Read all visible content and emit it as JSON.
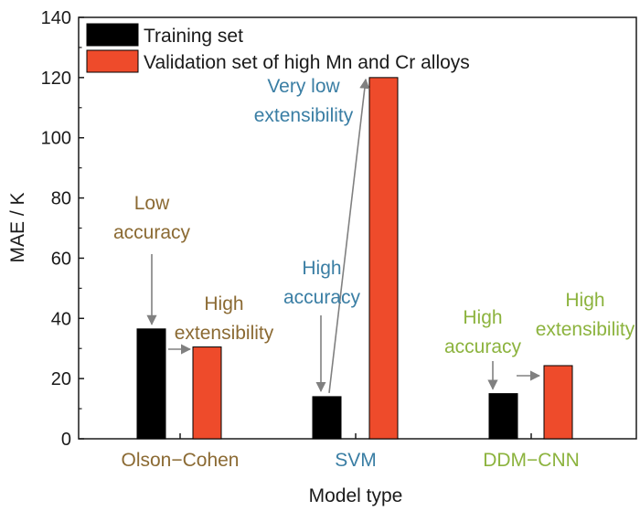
{
  "chart_data": {
    "type": "bar",
    "categories": [
      "Olson−Cohen",
      "SVM",
      "DDM−CNN"
    ],
    "series": [
      {
        "name": "Training set",
        "values": [
          36.5,
          14,
          15
        ],
        "color": "#000000"
      },
      {
        "name": "Validation set of high Mn and Cr alloys",
        "values": [
          30.5,
          120,
          24.3
        ],
        "color": "#ee4b2b"
      }
    ],
    "xlabel": "Model type",
    "ylabel": "MAE / K",
    "ylim": [
      0,
      140
    ],
    "yticks": [
      0,
      20,
      40,
      60,
      80,
      100,
      120,
      140
    ],
    "grid": false,
    "legend_position": "top-left",
    "category_colors": [
      "#8b6a33",
      "#3a7ea4",
      "#8cb33e"
    ],
    "annotations": [
      {
        "category": 0,
        "lines": [
          "Low",
          "accuracy"
        ],
        "color": "#8b6a33"
      },
      {
        "category": 0,
        "lines": [
          "High",
          "extensibility"
        ],
        "color": "#8b6a33"
      },
      {
        "category": 1,
        "lines": [
          "Very low",
          "extensibility"
        ],
        "color": "#3a7ea4"
      },
      {
        "category": 1,
        "lines": [
          "High",
          "accuracy"
        ],
        "color": "#3a7ea4"
      },
      {
        "category": 2,
        "lines": [
          "High",
          "accuracy"
        ],
        "color": "#8cb33e"
      },
      {
        "category": 2,
        "lines": [
          "High",
          "extensibility"
        ],
        "color": "#8cb33e"
      }
    ]
  }
}
